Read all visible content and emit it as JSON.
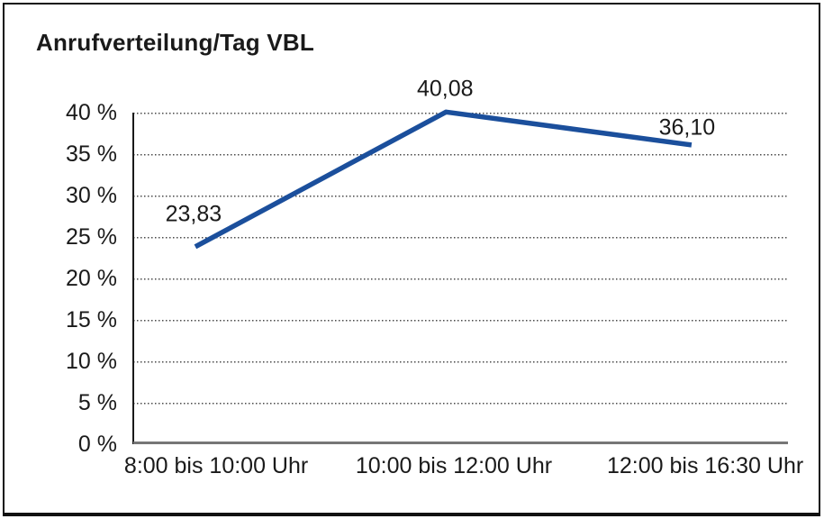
{
  "chart": {
    "title": "Anrufverteilung/Tag VBL"
  },
  "chart_data": {
    "type": "line",
    "title": "Anrufverteilung/Tag VBL",
    "categories": [
      "8:00 bis 10:00 Uhr",
      "10:00 bis 12:00 Uhr",
      "12:00 bis 16:30 Uhr"
    ],
    "values": [
      23.83,
      40.08,
      36.1
    ],
    "data_labels": [
      "23,83",
      "40,08",
      "36,10"
    ],
    "xlabel": "",
    "ylabel": "",
    "ylim": [
      0,
      40
    ],
    "y_tick_step": 5,
    "y_tick_labels": [
      "40 %",
      "35 %",
      "30 %",
      "25 %",
      "20 %",
      "15 %",
      "10 %",
      "5 %",
      "0 %"
    ],
    "grid": "horizontal-dotted",
    "legend": "none",
    "line_color": "#1B4F9C",
    "axis_color": "#1a1a1a",
    "x_axis_line_color": "#767676",
    "gridline_color": "#4a4a4a"
  }
}
